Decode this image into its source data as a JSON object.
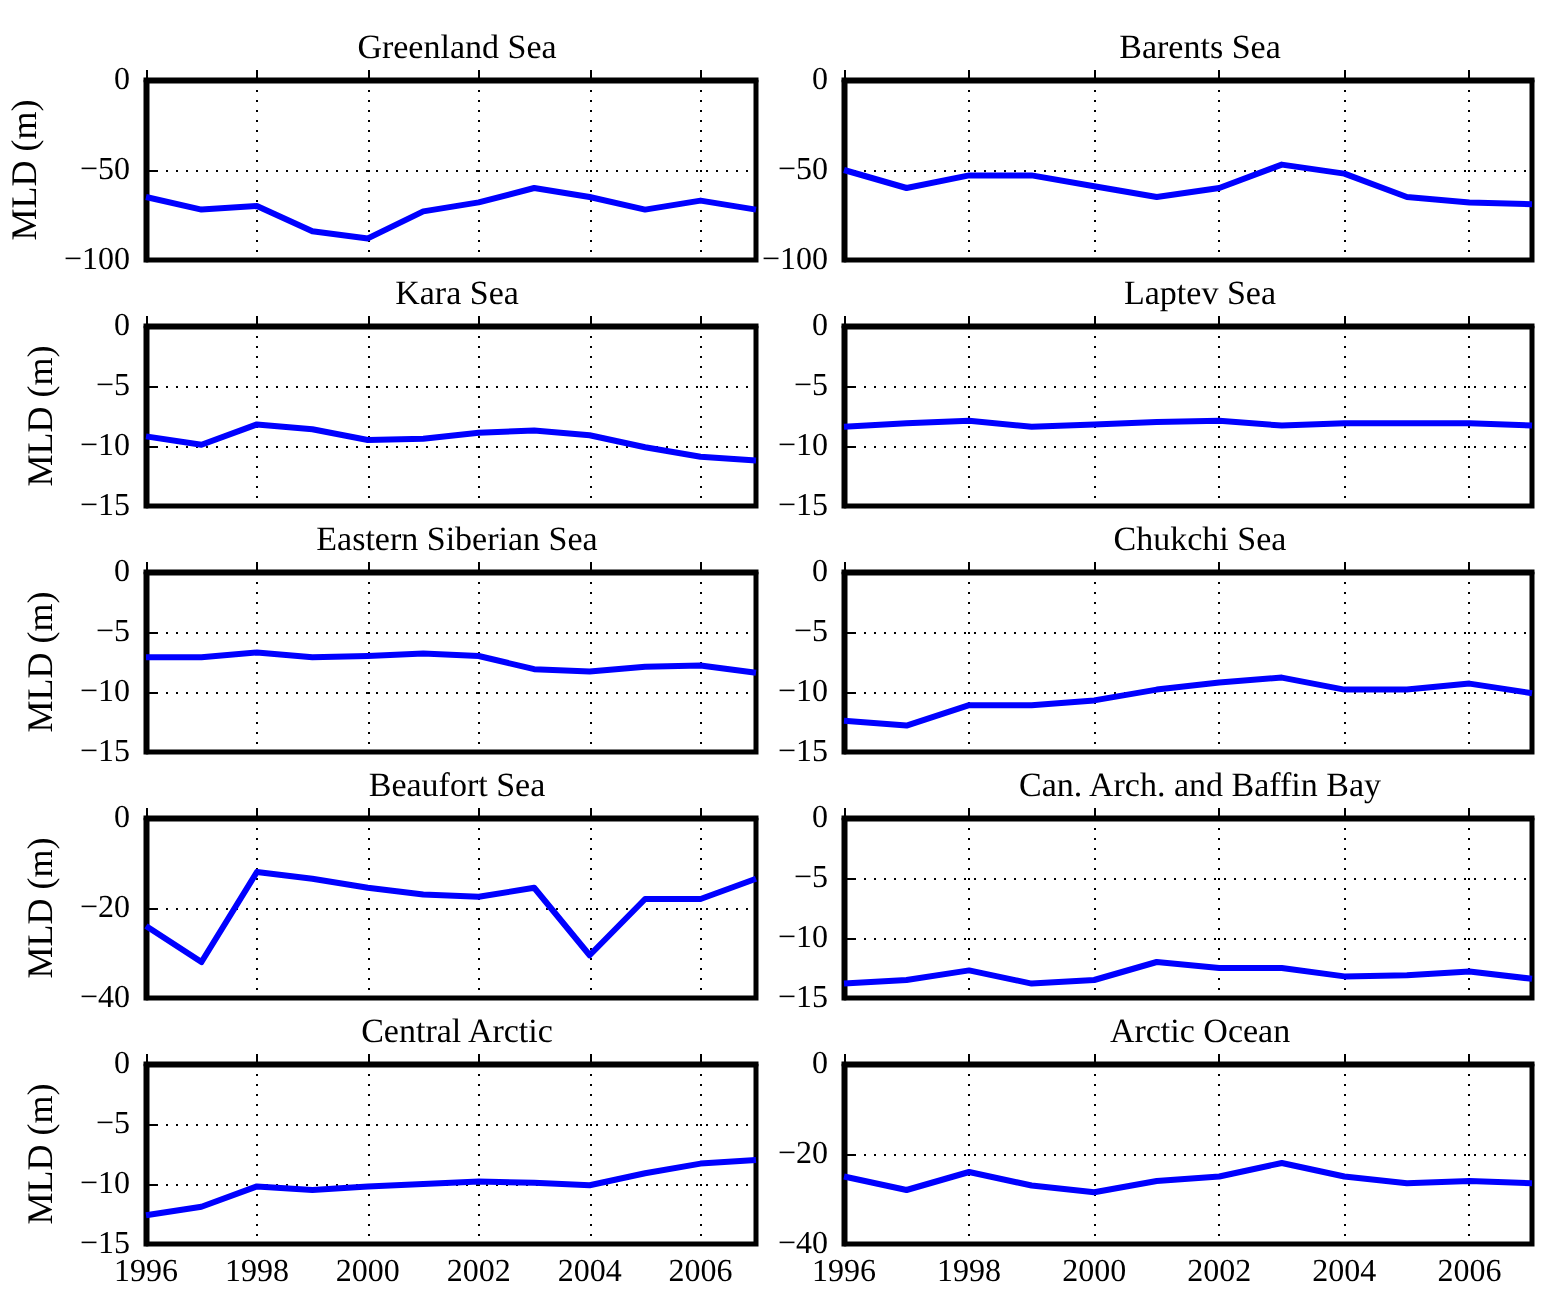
{
  "chart_data": [
    {
      "type": "line",
      "title": "Greenland Sea",
      "ylabel": "MLD (m)",
      "x": [
        1996,
        1997,
        1998,
        1999,
        2000,
        2001,
        2002,
        2003,
        2004,
        2005,
        2006,
        2007
      ],
      "series": [
        {
          "color": "#0000ff",
          "values": [
            -65,
            -72,
            -70,
            -84,
            -88,
            -73,
            -68,
            -60,
            -65,
            -72,
            -67,
            -72
          ]
        }
      ],
      "xlim": [
        1996,
        2007
      ],
      "xticks": [
        1996,
        1998,
        2000,
        2002,
        2004,
        2006
      ],
      "ylim": [
        -100,
        0
      ],
      "yticks": [
        -100,
        -50,
        0
      ],
      "grid": true,
      "marker": "none",
      "line_style": "solid",
      "tick_labels": "y"
    },
    {
      "type": "line",
      "title": "Barents Sea",
      "x": [
        1996,
        1997,
        1998,
        1999,
        2000,
        2001,
        2002,
        2003,
        2004,
        2005,
        2006,
        2007
      ],
      "series": [
        {
          "color": "#0000ff",
          "values": [
            -50,
            -60,
            -53,
            -53,
            -59,
            -65,
            -60,
            -47,
            -52,
            -65,
            -68,
            -69
          ]
        }
      ],
      "xlim": [
        1996,
        2007
      ],
      "xticks": [
        1996,
        1998,
        2000,
        2002,
        2004,
        2006
      ],
      "ylim": [
        -100,
        0
      ],
      "yticks": [
        -100,
        -50,
        0
      ],
      "grid": true,
      "marker": "none",
      "line_style": "solid",
      "tick_labels": "y"
    },
    {
      "type": "line",
      "title": "Kara Sea",
      "ylabel": "MLD (m)",
      "x": [
        1996,
        1997,
        1998,
        1999,
        2000,
        2001,
        2002,
        2003,
        2004,
        2005,
        2006,
        2007
      ],
      "series": [
        {
          "color": "#0000ff",
          "values": [
            -9.2,
            -9.9,
            -8.2,
            -8.6,
            -9.5,
            -9.4,
            -8.9,
            -8.7,
            -9.1,
            -10.1,
            -10.9,
            -11.2
          ]
        }
      ],
      "xlim": [
        1996,
        2007
      ],
      "xticks": [
        1996,
        1998,
        2000,
        2002,
        2004,
        2006
      ],
      "ylim": [
        -15,
        0
      ],
      "yticks": [
        -15,
        -10,
        -5,
        0
      ],
      "grid": true,
      "marker": "none",
      "line_style": "solid",
      "tick_labels": "y"
    },
    {
      "type": "line",
      "title": "Laptev Sea",
      "x": [
        1996,
        1997,
        1998,
        1999,
        2000,
        2001,
        2002,
        2003,
        2004,
        2005,
        2006,
        2007
      ],
      "series": [
        {
          "color": "#0000ff",
          "values": [
            -8.4,
            -8.1,
            -7.9,
            -8.4,
            -8.2,
            -8.0,
            -7.9,
            -8.3,
            -8.1,
            -8.1,
            -8.1,
            -8.3
          ]
        }
      ],
      "xlim": [
        1996,
        2007
      ],
      "xticks": [
        1996,
        1998,
        2000,
        2002,
        2004,
        2006
      ],
      "ylim": [
        -15,
        0
      ],
      "yticks": [
        -15,
        -10,
        -5,
        0
      ],
      "grid": true,
      "marker": "none",
      "line_style": "solid",
      "tick_labels": "y"
    },
    {
      "type": "line",
      "title": "Eastern Siberian Sea",
      "ylabel": "MLD (m)",
      "x": [
        1996,
        1997,
        1998,
        1999,
        2000,
        2001,
        2002,
        2003,
        2004,
        2005,
        2006,
        2007
      ],
      "series": [
        {
          "color": "#0000ff",
          "values": [
            -7.1,
            -7.1,
            -6.7,
            -7.1,
            -7.0,
            -6.8,
            -7.0,
            -8.1,
            -8.3,
            -7.9,
            -7.8,
            -8.4
          ]
        }
      ],
      "xlim": [
        1996,
        2007
      ],
      "xticks": [
        1996,
        1998,
        2000,
        2002,
        2004,
        2006
      ],
      "ylim": [
        -15,
        0
      ],
      "yticks": [
        -15,
        -10,
        -5,
        0
      ],
      "grid": true,
      "marker": "none",
      "line_style": "solid",
      "tick_labels": "y"
    },
    {
      "type": "line",
      "title": "Chukchi Sea",
      "x": [
        1996,
        1997,
        1998,
        1999,
        2000,
        2001,
        2002,
        2003,
        2004,
        2005,
        2006,
        2007
      ],
      "series": [
        {
          "color": "#0000ff",
          "values": [
            -12.4,
            -12.8,
            -11.1,
            -11.1,
            -10.7,
            -9.8,
            -9.2,
            -8.8,
            -9.8,
            -9.8,
            -9.3,
            -10.1
          ]
        }
      ],
      "xlim": [
        1996,
        2007
      ],
      "xticks": [
        1996,
        1998,
        2000,
        2002,
        2004,
        2006
      ],
      "ylim": [
        -15,
        0
      ],
      "yticks": [
        -15,
        -10,
        -5,
        0
      ],
      "grid": true,
      "marker": "none",
      "line_style": "solid",
      "tick_labels": "y"
    },
    {
      "type": "line",
      "title": "Beaufort Sea",
      "ylabel": "MLD (m)",
      "x": [
        1996,
        1997,
        1998,
        1999,
        2000,
        2001,
        2002,
        2003,
        2004,
        2005,
        2006,
        2007
      ],
      "series": [
        {
          "color": "#0000ff",
          "values": [
            -24,
            -32,
            -12,
            -13.5,
            -15.5,
            -17,
            -17.5,
            -15.5,
            -30.5,
            -18,
            -18,
            -13.5
          ]
        }
      ],
      "xlim": [
        1996,
        2007
      ],
      "xticks": [
        1996,
        1998,
        2000,
        2002,
        2004,
        2006
      ],
      "ylim": [
        -40,
        0
      ],
      "yticks": [
        -40,
        -20,
        0
      ],
      "grid": true,
      "marker": "none",
      "line_style": "solid",
      "tick_labels": "y"
    },
    {
      "type": "line",
      "title": "Can. Arch. and Baffin Bay",
      "x": [
        1996,
        1997,
        1998,
        1999,
        2000,
        2001,
        2002,
        2003,
        2004,
        2005,
        2006,
        2007
      ],
      "series": [
        {
          "color": "#0000ff",
          "values": [
            -13.8,
            -13.5,
            -12.7,
            -13.8,
            -13.5,
            -12.0,
            -12.5,
            -12.5,
            -13.2,
            -13.1,
            -12.8,
            -13.4
          ]
        }
      ],
      "xlim": [
        1996,
        2007
      ],
      "xticks": [
        1996,
        1998,
        2000,
        2002,
        2004,
        2006
      ],
      "ylim": [
        -15,
        0
      ],
      "yticks": [
        -15,
        -10,
        -5,
        0
      ],
      "grid": true,
      "marker": "none",
      "line_style": "solid",
      "tick_labels": "y"
    },
    {
      "type": "line",
      "title": "Central Arctic",
      "ylabel": "MLD (m)",
      "x": [
        1996,
        1997,
        1998,
        1999,
        2000,
        2001,
        2002,
        2003,
        2004,
        2005,
        2006,
        2007
      ],
      "series": [
        {
          "color": "#0000ff",
          "values": [
            -12.6,
            -11.9,
            -10.2,
            -10.5,
            -10.2,
            -10.0,
            -9.8,
            -9.9,
            -10.1,
            -9.1,
            -8.3,
            -8.0
          ]
        }
      ],
      "xlim": [
        1996,
        2007
      ],
      "xticks": [
        1996,
        1998,
        2000,
        2002,
        2004,
        2006
      ],
      "ylim": [
        -15,
        0
      ],
      "yticks": [
        -15,
        -10,
        -5,
        0
      ],
      "grid": true,
      "marker": "none",
      "line_style": "solid"
    },
    {
      "type": "line",
      "title": "Arctic Ocean",
      "x": [
        1996,
        1997,
        1998,
        1999,
        2000,
        2001,
        2002,
        2003,
        2004,
        2005,
        2006,
        2007
      ],
      "series": [
        {
          "color": "#0000ff",
          "values": [
            -25,
            -28,
            -24,
            -27,
            -28.5,
            -26,
            -25,
            -22,
            -25,
            -26.5,
            -26,
            -26.5
          ]
        }
      ],
      "xlim": [
        1996,
        2007
      ],
      "xticks": [
        1996,
        1998,
        2000,
        2002,
        2004,
        2006
      ],
      "ylim": [
        -40,
        0
      ],
      "yticks": [
        -40,
        -20,
        0
      ],
      "grid": true,
      "marker": "none",
      "line_style": "solid"
    }
  ]
}
